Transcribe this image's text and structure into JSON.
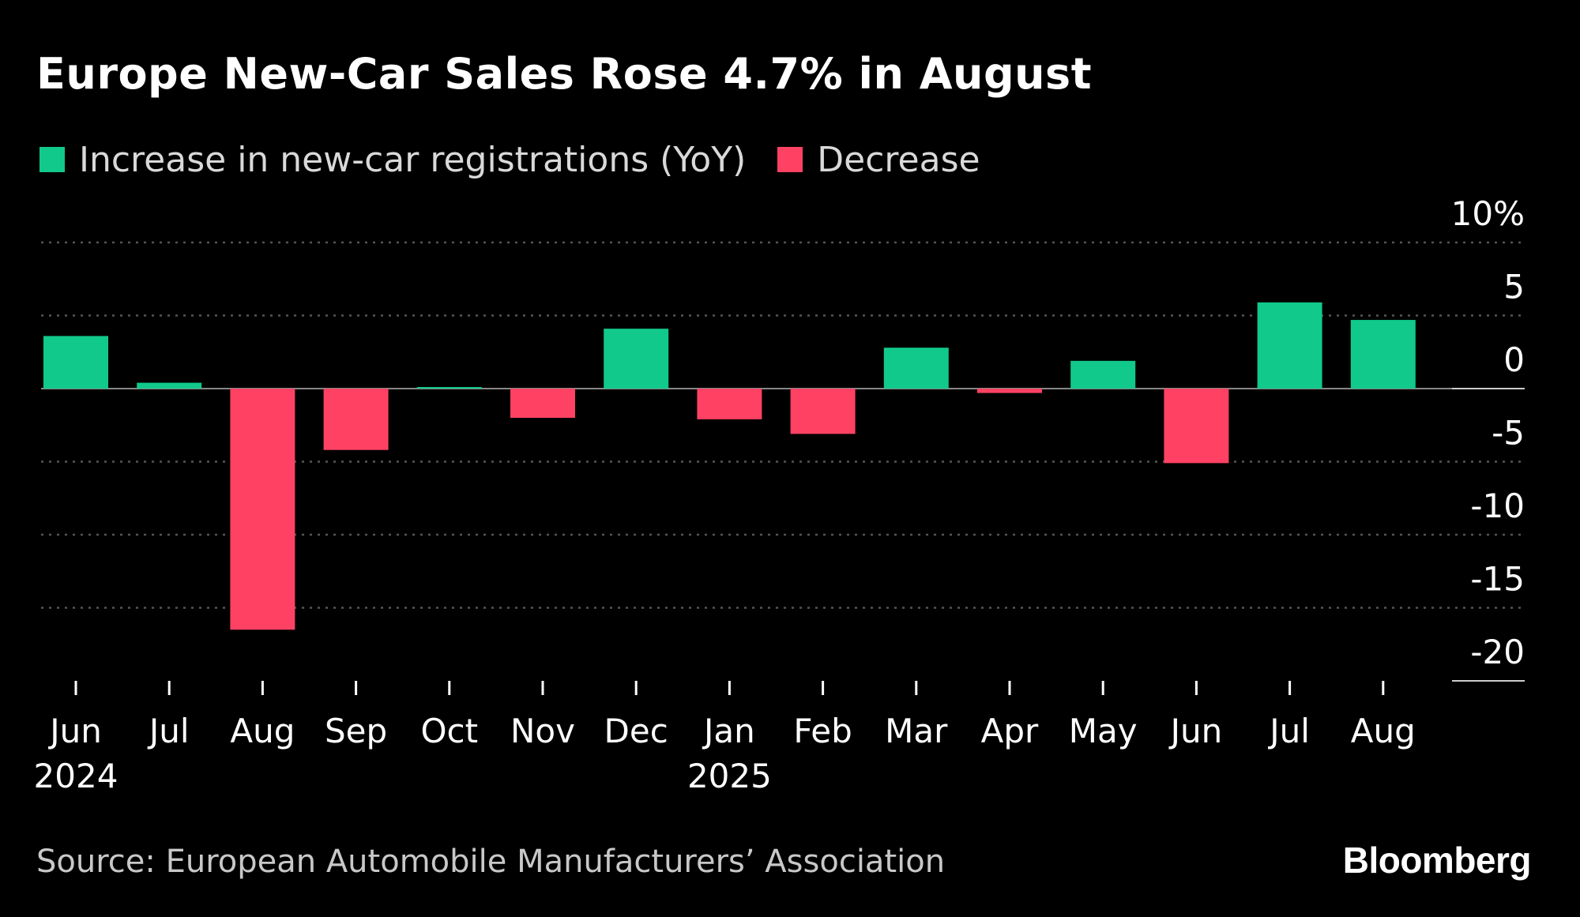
{
  "colors": {
    "background": "#000000",
    "increase": "#11c98b",
    "decrease": "#ff4263",
    "gridline": "#555555",
    "zero_line": "#888888",
    "text": "#ffffff",
    "muted_text": "#d9d9d9"
  },
  "source": "Source: European Automobile Manufacturers’ Association",
  "logo": "Bloomberg",
  "chart_data": {
    "type": "bar",
    "title": "Europe New-Car Sales Rose 4.7% in August",
    "legend": [
      {
        "label": "Increase in new-car registrations (YoY)",
        "color": "#11c98b"
      },
      {
        "label": "Decrease",
        "color": "#ff4263"
      }
    ],
    "legend_position": "top-left",
    "categories": [
      "Jun",
      "Jul",
      "Aug",
      "Sep",
      "Oct",
      "Nov",
      "Dec",
      "Jan",
      "Feb",
      "Mar",
      "Apr",
      "May",
      "Jun",
      "Jul",
      "Aug"
    ],
    "year_labels": [
      {
        "index": 0,
        "label": "2024"
      },
      {
        "index": 7,
        "label": "2025"
      }
    ],
    "values": [
      3.6,
      0.4,
      -16.5,
      -4.2,
      0.1,
      -2.0,
      4.1,
      -2.1,
      -3.1,
      2.8,
      -0.3,
      1.9,
      -5.1,
      5.9,
      4.7
    ],
    "ylim": [
      -20,
      10
    ],
    "yticks": [
      10,
      5,
      0,
      -5,
      -10,
      -15,
      -20
    ],
    "ytick_labels": [
      "10%",
      "5",
      "0",
      "-5",
      "-10",
      "-15",
      "-20"
    ],
    "y_axis_position": "right",
    "grid": true,
    "xlabel": "",
    "ylabel": ""
  }
}
